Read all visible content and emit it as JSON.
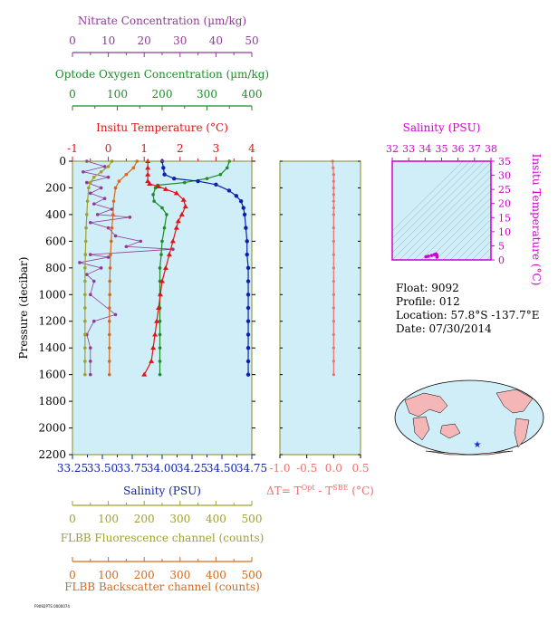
{
  "colors": {
    "nitrate": "#8e3c96",
    "oxygen": "#1e8c2a",
    "temperature": "#e01414",
    "salinity": "#0b1fb0",
    "fluorescence": "#a0a030",
    "backscatter": "#d46a1e",
    "dt": "#f07070",
    "inset": "#d000d0",
    "plot_bg": "#cfeef7"
  },
  "info": {
    "float": "Float:  9092",
    "profile": "Profile:  012",
    "location": "Location:  57.8°S  -137.7°E",
    "date": "Date:  07/30/2014"
  },
  "footer": "F9092PTS 0000074",
  "chart_data": [
    {
      "type": "line",
      "panel": "main",
      "ylabel": "Pressure (decibar)",
      "ylim": [
        2200,
        0
      ],
      "yticks": [
        "0",
        "200",
        "400",
        "600",
        "800",
        "1000",
        "1200",
        "1400",
        "1600",
        "1800",
        "2000",
        "2200"
      ],
      "axes": [
        {
          "key": "nitrate",
          "label": "Nitrate Concentration (µm/kg)",
          "range": [
            0,
            50
          ],
          "ticks": [
            "0",
            "10",
            "20",
            "30",
            "40",
            "50"
          ],
          "position": "top"
        },
        {
          "key": "oxygen",
          "label": "Optode Oxygen Concentration (µm/kg)",
          "range": [
            0,
            400
          ],
          "ticks": [
            "0",
            "100",
            "200",
            "300",
            "400"
          ],
          "position": "top"
        },
        {
          "key": "temperature",
          "label": "Insitu Temperature (°C)",
          "range": [
            -1,
            4
          ],
          "ticks": [
            "-1",
            "0",
            "1",
            "2",
            "3",
            "4"
          ],
          "position": "top"
        },
        {
          "key": "salinity",
          "label": "Salinity (PSU)",
          "range": [
            33.25,
            34.75
          ],
          "ticks": [
            "33.25",
            "33.50",
            "33.75",
            "34.00",
            "34.25",
            "34.50",
            "34.75"
          ],
          "position": "bottom"
        },
        {
          "key": "fluorescence",
          "label": "FLBB Fluorescence channel (counts)",
          "range": [
            0,
            500
          ],
          "ticks": [
            "0",
            "100",
            "200",
            "300",
            "400",
            "500"
          ],
          "position": "bottom"
        },
        {
          "key": "backscatter",
          "label": "FLBB Backscatter channel (counts)",
          "range": [
            0,
            500
          ],
          "ticks": [
            "0",
            "100",
            "200",
            "300",
            "400",
            "500"
          ],
          "position": "bottom"
        }
      ],
      "series": [
        {
          "key": "salinity",
          "points": [
            [
              34.0,
              0
            ],
            [
              34.01,
              50
            ],
            [
              34.02,
              100
            ],
            [
              34.1,
              130
            ],
            [
              34.3,
              150
            ],
            [
              34.45,
              175
            ],
            [
              34.56,
              220
            ],
            [
              34.62,
              260
            ],
            [
              34.66,
              300
            ],
            [
              34.68,
              350
            ],
            [
              34.69,
              400
            ],
            [
              34.7,
              500
            ],
            [
              34.71,
              600
            ],
            [
              34.71,
              700
            ],
            [
              34.72,
              800
            ],
            [
              34.72,
              900
            ],
            [
              34.72,
              1000
            ],
            [
              34.72,
              1100
            ],
            [
              34.72,
              1200
            ],
            [
              34.72,
              1300
            ],
            [
              34.72,
              1400
            ],
            [
              34.72,
              1500
            ],
            [
              34.72,
              1600
            ]
          ]
        },
        {
          "key": "temperature",
          "points": [
            [
              1.1,
              0
            ],
            [
              1.1,
              50
            ],
            [
              1.1,
              100
            ],
            [
              1.1,
              150
            ],
            [
              1.15,
              170
            ],
            [
              1.4,
              190
            ],
            [
              1.6,
              210
            ],
            [
              1.9,
              240
            ],
            [
              2.1,
              290
            ],
            [
              2.15,
              340
            ],
            [
              2.05,
              400
            ],
            [
              1.95,
              450
            ],
            [
              1.9,
              500
            ],
            [
              1.8,
              600
            ],
            [
              1.7,
              700
            ],
            [
              1.6,
              800
            ],
            [
              1.5,
              900
            ],
            [
              1.45,
              1000
            ],
            [
              1.4,
              1100
            ],
            [
              1.35,
              1200
            ],
            [
              1.3,
              1300
            ],
            [
              1.25,
              1400
            ],
            [
              1.2,
              1500
            ],
            [
              1.0,
              1600
            ]
          ]
        },
        {
          "key": "oxygen",
          "points": [
            [
              350,
              0
            ],
            [
              345,
              50
            ],
            [
              330,
              100
            ],
            [
              300,
              130
            ],
            [
              250,
              160
            ],
            [
              190,
              180
            ],
            [
              185,
              200
            ],
            [
              180,
              250
            ],
            [
              182,
              300
            ],
            [
              200,
              350
            ],
            [
              210,
              400
            ],
            [
              205,
              500
            ],
            [
              200,
              600
            ],
            [
              198,
              700
            ],
            [
              195,
              800
            ],
            [
              195,
              900
            ],
            [
              195,
              1000
            ],
            [
              195,
              1100
            ],
            [
              195,
              1200
            ],
            [
              195,
              1300
            ],
            [
              195,
              1400
            ],
            [
              195,
              1500
            ],
            [
              195,
              1600
            ]
          ]
        },
        {
          "key": "nitrate",
          "points": [
            [
              4,
              0
            ],
            [
              9,
              40
            ],
            [
              3,
              80
            ],
            [
              10,
              120
            ],
            [
              4,
              160
            ],
            [
              8,
              200
            ],
            [
              5,
              240
            ],
            [
              9,
              280
            ],
            [
              6,
              320
            ],
            [
              11,
              360
            ],
            [
              7,
              400
            ],
            [
              16,
              420
            ],
            [
              5,
              460
            ],
            [
              10,
              500
            ],
            [
              12,
              560
            ],
            [
              19,
              600
            ],
            [
              15,
              640
            ],
            [
              28,
              660
            ],
            [
              5,
              700
            ],
            [
              10,
              720
            ],
            [
              2,
              760
            ],
            [
              8,
              800
            ],
            [
              4,
              850
            ],
            [
              6,
              900
            ],
            [
              5,
              1000
            ],
            [
              12,
              1150
            ],
            [
              6,
              1200
            ],
            [
              4,
              1300
            ],
            [
              5,
              1400
            ],
            [
              5,
              1500
            ],
            [
              5,
              1600
            ]
          ]
        },
        {
          "key": "fluorescence",
          "points": [
            [
              110,
              0
            ],
            [
              100,
              40
            ],
            [
              80,
              80
            ],
            [
              60,
              120
            ],
            [
              50,
              160
            ],
            [
              45,
              200
            ],
            [
              42,
              300
            ],
            [
              40,
              400
            ],
            [
              38,
              500
            ],
            [
              37,
              600
            ],
            [
              36,
              700
            ],
            [
              35,
              800
            ],
            [
              35,
              900
            ],
            [
              35,
              1000
            ],
            [
              35,
              1100
            ],
            [
              35,
              1200
            ],
            [
              35,
              1300
            ],
            [
              35,
              1400
            ],
            [
              35,
              1500
            ],
            [
              35,
              1600
            ]
          ]
        },
        {
          "key": "backscatter",
          "points": [
            [
              180,
              0
            ],
            [
              170,
              50
            ],
            [
              150,
              100
            ],
            [
              130,
              150
            ],
            [
              120,
              200
            ],
            [
              115,
              300
            ],
            [
              113,
              400
            ],
            [
              110,
              500
            ],
            [
              108,
              600
            ],
            [
              106,
              700
            ],
            [
              105,
              800
            ],
            [
              104,
              900
            ],
            [
              104,
              1000
            ],
            [
              103,
              1100
            ],
            [
              103,
              1200
            ],
            [
              103,
              1300
            ],
            [
              103,
              1400
            ],
            [
              103,
              1500
            ],
            [
              103,
              1600
            ]
          ]
        }
      ]
    },
    {
      "type": "line",
      "panel": "delta-t",
      "xlabel": "ΔT= T^Opt - T^SBE (°C)",
      "xlabel_parts": {
        "pre": "ΔT= T",
        "sup1": "Opt",
        "mid": " - T",
        "sup2": "SBE",
        "post": " (°C)"
      },
      "xlim": [
        -1.0,
        0.5
      ],
      "xticks": [
        "-1.0",
        "-0.5",
        "0.0",
        "0.5"
      ],
      "ylim": [
        2200,
        0
      ],
      "series": [
        {
          "key": "dt",
          "points": [
            [
              -0.02,
              0
            ],
            [
              -0.01,
              50
            ],
            [
              0.0,
              100
            ],
            [
              0.0,
              150
            ],
            [
              0.0,
              200
            ],
            [
              0.0,
              250
            ],
            [
              0.0,
              300
            ],
            [
              0.0,
              350
            ],
            [
              0.0,
              400
            ],
            [
              0.0,
              500
            ],
            [
              0.0,
              600
            ],
            [
              0.0,
              700
            ],
            [
              0.0,
              800
            ],
            [
              0.0,
              900
            ],
            [
              0.0,
              1000
            ],
            [
              0.0,
              1100
            ],
            [
              0.0,
              1200
            ],
            [
              0.0,
              1300
            ],
            [
              0.0,
              1400
            ],
            [
              0.0,
              1500
            ],
            [
              0.0,
              1600
            ]
          ]
        }
      ]
    },
    {
      "type": "scatter",
      "panel": "ts-diagram",
      "title": "Salinity (PSU)",
      "xlim": [
        32,
        38
      ],
      "xticks": [
        "32",
        "33",
        "34",
        "35",
        "36",
        "37",
        "38"
      ],
      "ylabel": "Insitu Temperature (°C)",
      "ylim": [
        0,
        35
      ],
      "yticks": [
        "0",
        "5",
        "10",
        "15",
        "20",
        "25",
        "30",
        "35"
      ],
      "series": [
        {
          "key": "ts",
          "points": [
            [
              34.05,
              1.1
            ],
            [
              34.2,
              1.3
            ],
            [
              34.4,
              1.6
            ],
            [
              34.56,
              1.9
            ],
            [
              34.66,
              2.1
            ],
            [
              34.7,
              1.8
            ],
            [
              34.72,
              1.5
            ],
            [
              34.72,
              1.2
            ],
            [
              34.72,
              1.0
            ]
          ]
        }
      ]
    }
  ]
}
